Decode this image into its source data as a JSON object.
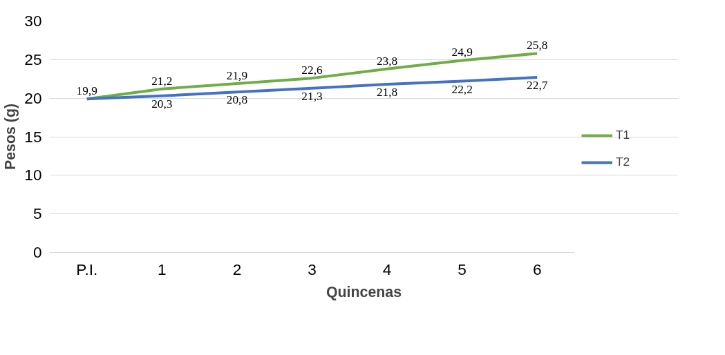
{
  "chart_data": {
    "type": "line",
    "xlabel": "Quincenas",
    "ylabel": "Pesos (g)",
    "categories": [
      "P.I.",
      "1",
      "2",
      "3",
      "4",
      "5",
      "6"
    ],
    "series": [
      {
        "name": "T1",
        "color": "#70ad47",
        "values": [
          19.9,
          21.2,
          21.9,
          22.6,
          23.8,
          24.9,
          25.8
        ],
        "value_labels": [
          "19,9",
          "21,2",
          "21,9",
          "22,6",
          "23,8",
          "24,9",
          "25,8"
        ]
      },
      {
        "name": "T2",
        "color": "#4472c4",
        "values": [
          19.9,
          20.3,
          20.8,
          21.3,
          21.8,
          22.2,
          22.7
        ],
        "value_labels": [
          null,
          "20,3",
          "20,8",
          "21,3",
          "21,8",
          "22,2",
          "22,7"
        ]
      }
    ],
    "ylim": [
      0,
      30
    ],
    "yticks": [
      0,
      5,
      10,
      15,
      20,
      25,
      30
    ],
    "grid": "y",
    "legend": "right",
    "marker": "none",
    "line_style": "solid"
  }
}
